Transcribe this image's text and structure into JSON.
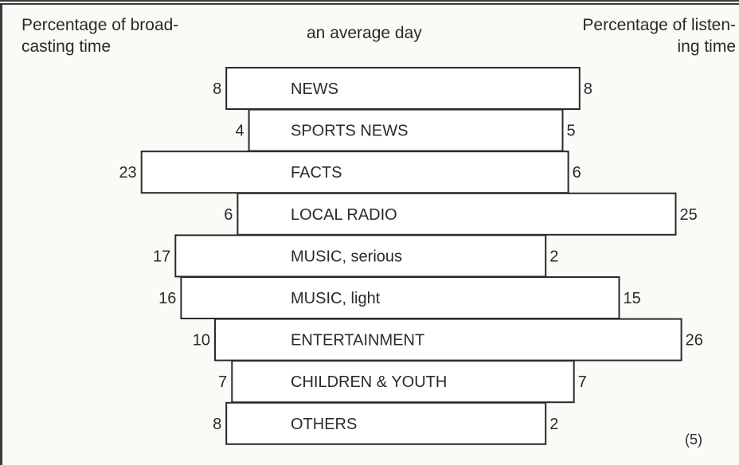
{
  "header": {
    "left_label": "Percentage of broad-\ncasting time",
    "center_label": "an average day",
    "right_label": "Percentage of listen-\ning time"
  },
  "footnote": "(5)",
  "chart_data": {
    "type": "bar",
    "layout": "back-to-back horizontal bars sharing a center label column",
    "subtitle": "an average day",
    "left_axis_label": "Percentage of broadcasting time",
    "right_axis_label": "Percentage of listening time",
    "categories": [
      "NEWS",
      "SPORTS NEWS",
      "FACTS",
      "LOCAL RADIO",
      "MUSIC, serious",
      "MUSIC, light",
      "ENTERTAINMENT",
      "CHILDREN & YOUTH",
      "OTHERS"
    ],
    "series": [
      {
        "name": "Percentage of broadcasting time",
        "values": [
          8,
          4,
          23,
          6,
          17,
          16,
          10,
          7,
          8
        ]
      },
      {
        "name": "Percentage of listening time",
        "values": [
          8,
          5,
          6,
          25,
          2,
          15,
          26,
          7,
          2
        ]
      }
    ],
    "grid": false,
    "legend": "none"
  }
}
